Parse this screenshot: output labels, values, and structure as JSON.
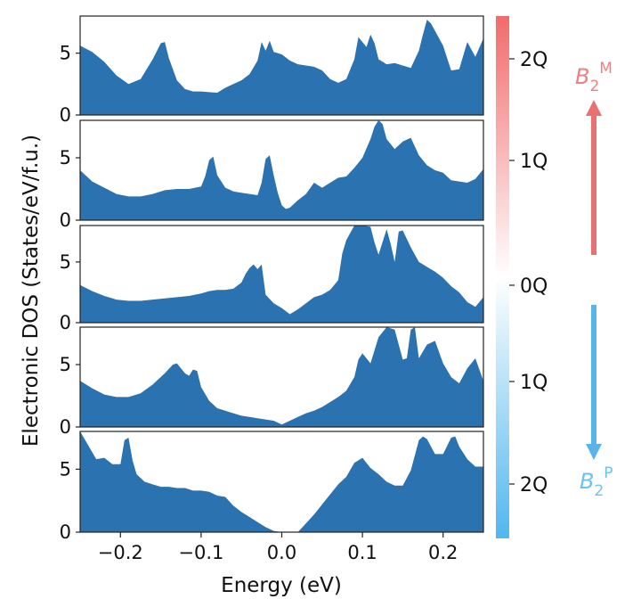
{
  "chart_data": {
    "type": "area",
    "title": "",
    "xlabel": "Energy (eV)",
    "ylabel": "Electronic DOS (States/eV/f.u.)",
    "xlim": [
      -0.25,
      0.25
    ],
    "ylim": [
      0,
      8
    ],
    "x_ticks": [
      "−0.2",
      "−0.1",
      "0.0",
      "0.1",
      "0.2"
    ],
    "x_tick_values": [
      -0.2,
      -0.1,
      0.0,
      0.1,
      0.2
    ],
    "y_ticks": [
      "0",
      "5"
    ],
    "y_tick_values": [
      0,
      5
    ],
    "fill_color": "#2a72b0",
    "series": [
      {
        "name": "Panel 1 (B2M 2Q)",
        "x": [
          -0.25,
          -0.235,
          -0.22,
          -0.205,
          -0.19,
          -0.175,
          -0.16,
          -0.15,
          -0.145,
          -0.14,
          -0.13,
          -0.12,
          -0.11,
          -0.1,
          -0.09,
          -0.08,
          -0.07,
          -0.06,
          -0.05,
          -0.04,
          -0.03,
          -0.025,
          -0.02,
          -0.015,
          -0.01,
          0.0,
          0.01,
          0.02,
          0.03,
          0.04,
          0.05,
          0.06,
          0.07,
          0.08,
          0.09,
          0.095,
          0.1,
          0.105,
          0.11,
          0.115,
          0.12,
          0.13,
          0.14,
          0.15,
          0.16,
          0.17,
          0.175,
          0.18,
          0.185,
          0.19,
          0.2,
          0.21,
          0.22,
          0.23,
          0.24,
          0.25
        ],
        "y": [
          5.6,
          5.1,
          4.3,
          3.2,
          2.5,
          2.9,
          4.5,
          5.8,
          5.9,
          4.6,
          2.8,
          2.1,
          1.9,
          1.9,
          1.85,
          1.8,
          2.2,
          2.5,
          2.8,
          3.3,
          4.4,
          5.9,
          5.2,
          6.0,
          5.1,
          4.9,
          4.4,
          4.1,
          4.0,
          3.9,
          3.6,
          2.9,
          2.6,
          2.9,
          4.5,
          6.3,
          5.9,
          5.5,
          6.5,
          5.8,
          4.5,
          4.1,
          4.2,
          4.0,
          3.8,
          5.2,
          6.5,
          7.7,
          7.4,
          6.8,
          5.6,
          3.6,
          3.7,
          5.9,
          4.7,
          6.2
        ]
      },
      {
        "name": "Panel 2 (B2M 1Q)",
        "x": [
          -0.25,
          -0.235,
          -0.22,
          -0.205,
          -0.19,
          -0.175,
          -0.16,
          -0.145,
          -0.13,
          -0.115,
          -0.1,
          -0.095,
          -0.09,
          -0.085,
          -0.08,
          -0.07,
          -0.06,
          -0.05,
          -0.04,
          -0.03,
          -0.025,
          -0.02,
          -0.015,
          -0.01,
          -0.005,
          0.0,
          0.005,
          0.01,
          0.02,
          0.03,
          0.04,
          0.05,
          0.06,
          0.07,
          0.08,
          0.09,
          0.1,
          0.11,
          0.115,
          0.12,
          0.125,
          0.13,
          0.14,
          0.15,
          0.16,
          0.17,
          0.18,
          0.19,
          0.2,
          0.21,
          0.22,
          0.23,
          0.24,
          0.25
        ],
        "y": [
          4.0,
          3.1,
          2.6,
          2.1,
          1.9,
          1.9,
          2.1,
          2.4,
          2.5,
          2.5,
          2.7,
          3.5,
          4.8,
          5.1,
          3.6,
          2.6,
          2.3,
          2.2,
          2.1,
          2.0,
          3.0,
          4.9,
          5.2,
          3.6,
          2.2,
          1.2,
          0.9,
          1.0,
          1.6,
          2.1,
          3.0,
          2.6,
          3.0,
          3.4,
          3.5,
          4.2,
          5.0,
          6.5,
          7.5,
          8.2,
          7.7,
          6.5,
          5.7,
          6.3,
          6.6,
          5.2,
          4.4,
          4.0,
          3.8,
          3.2,
          3.1,
          3.0,
          3.3,
          4.1
        ]
      },
      {
        "name": "Panel 3 (0Q)",
        "x": [
          -0.25,
          -0.235,
          -0.22,
          -0.205,
          -0.19,
          -0.175,
          -0.16,
          -0.145,
          -0.13,
          -0.115,
          -0.1,
          -0.09,
          -0.08,
          -0.07,
          -0.06,
          -0.05,
          -0.045,
          -0.04,
          -0.035,
          -0.03,
          -0.025,
          -0.02,
          -0.01,
          0.0,
          0.01,
          0.02,
          0.03,
          0.04,
          0.05,
          0.06,
          0.07,
          0.075,
          0.08,
          0.09,
          0.1,
          0.11,
          0.115,
          0.12,
          0.13,
          0.135,
          0.14,
          0.145,
          0.15,
          0.16,
          0.17,
          0.18,
          0.19,
          0.2,
          0.21,
          0.22,
          0.23,
          0.24,
          0.25
        ],
        "y": [
          3.1,
          2.6,
          2.2,
          1.9,
          1.8,
          1.8,
          1.9,
          2.0,
          2.1,
          2.2,
          2.4,
          2.6,
          2.7,
          2.7,
          2.8,
          3.3,
          4.0,
          4.5,
          4.8,
          4.4,
          4.8,
          2.3,
          1.6,
          1.2,
          0.7,
          1.1,
          1.6,
          2.1,
          2.3,
          2.7,
          3.5,
          5.7,
          6.8,
          8.0,
          8.2,
          7.9,
          6.6,
          5.6,
          7.7,
          6.5,
          5.0,
          7.5,
          7.6,
          6.2,
          5.0,
          4.6,
          4.2,
          3.7,
          3.0,
          2.5,
          1.7,
          1.3,
          2.1
        ]
      },
      {
        "name": "Panel 4 (B2P 1Q)",
        "x": [
          -0.25,
          -0.235,
          -0.22,
          -0.205,
          -0.19,
          -0.175,
          -0.16,
          -0.145,
          -0.135,
          -0.13,
          -0.12,
          -0.115,
          -0.11,
          -0.105,
          -0.1,
          -0.09,
          -0.08,
          -0.07,
          -0.06,
          -0.05,
          -0.04,
          -0.03,
          -0.02,
          -0.01,
          0.0,
          0.01,
          0.02,
          0.03,
          0.04,
          0.05,
          0.06,
          0.07,
          0.08,
          0.09,
          0.095,
          0.1,
          0.11,
          0.12,
          0.13,
          0.14,
          0.15,
          0.155,
          0.16,
          0.165,
          0.17,
          0.18,
          0.19,
          0.2,
          0.21,
          0.22,
          0.23,
          0.24,
          0.25
        ],
        "y": [
          3.7,
          3.1,
          2.6,
          2.4,
          2.4,
          2.7,
          3.4,
          4.3,
          5.0,
          5.1,
          4.3,
          4.1,
          4.6,
          4.5,
          3.2,
          2.1,
          1.5,
          1.3,
          1.1,
          0.9,
          0.8,
          0.7,
          0.6,
          0.5,
          0.2,
          0.5,
          0.8,
          1.1,
          1.3,
          1.6,
          2.0,
          2.4,
          2.9,
          4.0,
          5.4,
          5.9,
          5.1,
          7.2,
          8.0,
          7.8,
          5.4,
          5.5,
          7.8,
          8.0,
          5.5,
          6.6,
          6.9,
          5.1,
          4.0,
          3.5,
          4.7,
          5.5,
          3.7
        ]
      },
      {
        "name": "Panel 5 (B2P 2Q)",
        "x": [
          -0.25,
          -0.24,
          -0.23,
          -0.22,
          -0.21,
          -0.2,
          -0.195,
          -0.19,
          -0.185,
          -0.18,
          -0.17,
          -0.16,
          -0.15,
          -0.14,
          -0.13,
          -0.12,
          -0.11,
          -0.1,
          -0.09,
          -0.08,
          -0.07,
          -0.06,
          -0.05,
          -0.04,
          -0.03,
          -0.02,
          -0.01,
          0.0,
          0.01,
          0.02,
          0.03,
          0.04,
          0.05,
          0.06,
          0.07,
          0.08,
          0.09,
          0.1,
          0.11,
          0.12,
          0.13,
          0.14,
          0.15,
          0.16,
          0.17,
          0.175,
          0.18,
          0.19,
          0.2,
          0.21,
          0.215,
          0.22,
          0.23,
          0.24,
          0.25
        ],
        "y": [
          8.0,
          6.9,
          5.8,
          5.9,
          5.4,
          5.4,
          7.3,
          7.5,
          5.7,
          4.6,
          4.0,
          3.8,
          3.6,
          3.6,
          3.5,
          3.5,
          3.3,
          3.3,
          3.2,
          2.9,
          2.8,
          2.1,
          1.6,
          1.2,
          0.8,
          0.4,
          0.1,
          0.0,
          0.0,
          0.0,
          0.7,
          1.4,
          2.2,
          3.0,
          3.8,
          4.4,
          5.5,
          5.9,
          5.1,
          4.6,
          4.0,
          3.7,
          3.7,
          4.9,
          7.3,
          7.6,
          7.4,
          6.2,
          6.2,
          7.5,
          7.6,
          6.8,
          5.8,
          5.2,
          5.2
        ]
      }
    ],
    "colorbar": {
      "labels": [
        "2Q",
        "1Q",
        "0Q",
        "1Q",
        "2Q"
      ],
      "top_color": "#f26b6b",
      "mid_color": "#ffffff",
      "bottom_color": "#52b7ee"
    },
    "annotations": {
      "top": {
        "base": "B",
        "sub": "2",
        "sup": "M",
        "color": "#f08080",
        "arrow_color": "#e87272"
      },
      "bottom": {
        "base": "B",
        "sub": "2",
        "sup": "P",
        "color": "#6cc3f0",
        "arrow_color": "#5ab4e8"
      }
    }
  }
}
